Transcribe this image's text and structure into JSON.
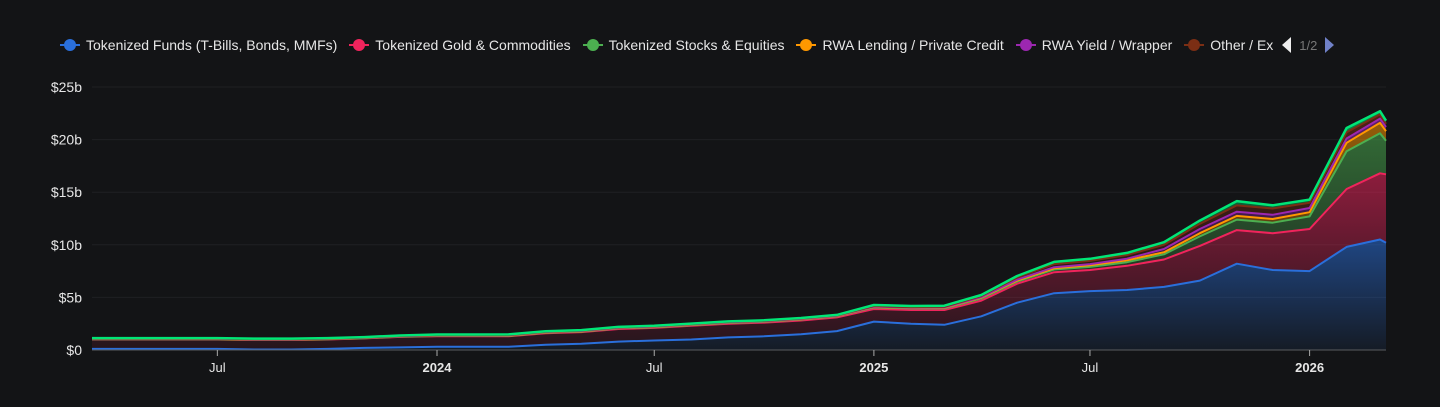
{
  "legend": {
    "page": "1/2"
  },
  "chart_data": {
    "type": "area",
    "stacked": true,
    "title": "",
    "xlabel": "",
    "ylabel": "",
    "ylim": [
      0,
      25
    ],
    "y_ticks": [
      "$0",
      "$5b",
      "$10b",
      "$15b",
      "$20b",
      "$25b"
    ],
    "y_tick_values": [
      0,
      5,
      10,
      15,
      20,
      25
    ],
    "x_ticks": [
      {
        "date": "2023-07-01",
        "label": "Jul",
        "bold": false
      },
      {
        "date": "2024-01-01",
        "label": "2024",
        "bold": true
      },
      {
        "date": "2024-07-01",
        "label": "Jul",
        "bold": false
      },
      {
        "date": "2025-01-01",
        "label": "2025",
        "bold": true
      },
      {
        "date": "2025-07-01",
        "label": "Jul",
        "bold": false
      },
      {
        "date": "2026-01-01",
        "label": "2026",
        "bold": true
      }
    ],
    "xlim": [
      "2023-03-18",
      "2026-03-06"
    ],
    "grid": true,
    "legend_position": "top",
    "x": [
      "2023-03-18",
      "2023-04-01",
      "2023-05-01",
      "2023-06-01",
      "2023-07-01",
      "2023-08-01",
      "2023-09-01",
      "2023-10-01",
      "2023-11-01",
      "2023-12-01",
      "2024-01-01",
      "2024-02-01",
      "2024-03-01",
      "2024-04-01",
      "2024-05-01",
      "2024-06-01",
      "2024-07-01",
      "2024-08-01",
      "2024-09-01",
      "2024-10-01",
      "2024-11-01",
      "2024-12-01",
      "2025-01-01",
      "2025-02-01",
      "2025-03-01",
      "2025-04-01",
      "2025-05-01",
      "2025-06-01",
      "2025-07-01",
      "2025-08-01",
      "2025-09-01",
      "2025-10-01",
      "2025-11-01",
      "2025-12-01",
      "2026-01-01",
      "2026-02-01",
      "2026-03-01",
      "2026-03-06"
    ],
    "series": [
      {
        "name": "Tokenized Funds (T-Bills, Bonds, MMFs)",
        "color": "#2a6fdb",
        "values": [
          0.1,
          0.1,
          0.1,
          0.1,
          0.1,
          0.05,
          0.05,
          0.1,
          0.2,
          0.25,
          0.3,
          0.3,
          0.3,
          0.5,
          0.6,
          0.8,
          0.9,
          1.0,
          1.2,
          1.3,
          1.5,
          1.8,
          2.7,
          2.5,
          2.4,
          3.2,
          4.5,
          5.4,
          5.6,
          5.7,
          6.0,
          6.6,
          8.2,
          7.6,
          7.5,
          9.8,
          10.5,
          10.2
        ]
      },
      {
        "name": "Tokenized Gold & Commodities",
        "color": "#f0245c",
        "values": [
          0.9,
          0.9,
          0.9,
          0.9,
          0.9,
          0.9,
          0.9,
          0.9,
          0.9,
          1.0,
          1.0,
          1.0,
          1.0,
          1.1,
          1.1,
          1.2,
          1.2,
          1.3,
          1.3,
          1.3,
          1.3,
          1.3,
          1.2,
          1.3,
          1.4,
          1.5,
          1.8,
          2.0,
          2.0,
          2.3,
          2.6,
          3.3,
          3.2,
          3.5,
          4.0,
          5.5,
          6.3,
          6.5
        ]
      },
      {
        "name": "Tokenized Stocks & Equities",
        "color": "#4caf50",
        "values": [
          0.02,
          0.02,
          0.02,
          0.02,
          0.02,
          0.02,
          0.02,
          0.02,
          0.02,
          0.02,
          0.03,
          0.03,
          0.04,
          0.05,
          0.05,
          0.06,
          0.06,
          0.07,
          0.08,
          0.08,
          0.1,
          0.1,
          0.15,
          0.15,
          0.15,
          0.2,
          0.2,
          0.25,
          0.3,
          0.35,
          0.5,
          0.9,
          1.0,
          1.0,
          1.2,
          3.6,
          3.8,
          3.2
        ]
      },
      {
        "name": "RWA Lending / Private Credit",
        "color": "#ff9800",
        "values": [
          0.03,
          0.03,
          0.03,
          0.03,
          0.03,
          0.03,
          0.03,
          0.03,
          0.03,
          0.03,
          0.04,
          0.04,
          0.04,
          0.04,
          0.04,
          0.04,
          0.04,
          0.04,
          0.04,
          0.04,
          0.04,
          0.04,
          0.05,
          0.05,
          0.06,
          0.08,
          0.1,
          0.12,
          0.15,
          0.18,
          0.2,
          0.3,
          0.35,
          0.35,
          0.4,
          0.8,
          1.0,
          0.9
        ]
      },
      {
        "name": "RWA Yield / Wrapper",
        "color": "#9c27b0",
        "values": [
          0.01,
          0.01,
          0.01,
          0.01,
          0.01,
          0.01,
          0.01,
          0.01,
          0.01,
          0.01,
          0.02,
          0.02,
          0.02,
          0.02,
          0.02,
          0.02,
          0.02,
          0.02,
          0.02,
          0.02,
          0.02,
          0.02,
          0.03,
          0.03,
          0.04,
          0.05,
          0.08,
          0.1,
          0.12,
          0.15,
          0.3,
          0.4,
          0.4,
          0.4,
          0.4,
          0.4,
          0.4,
          0.4
        ]
      },
      {
        "name": "Other / Exotic",
        "display_name": "Other / Ex",
        "color": "#7b2e14",
        "values": [
          0.02,
          0.02,
          0.02,
          0.02,
          0.02,
          0.02,
          0.02,
          0.02,
          0.02,
          0.02,
          0.03,
          0.03,
          0.03,
          0.03,
          0.03,
          0.03,
          0.03,
          0.03,
          0.03,
          0.03,
          0.03,
          0.03,
          0.05,
          0.05,
          0.06,
          0.1,
          0.2,
          0.3,
          0.3,
          0.35,
          0.4,
          0.5,
          0.6,
          0.6,
          0.5,
          0.6,
          0.4,
          0.3
        ]
      },
      {
        "color": "#00e676",
        "values": [
          0.05,
          0.05,
          0.05,
          0.05,
          0.05,
          0.05,
          0.05,
          0.05,
          0.05,
          0.05,
          0.05,
          0.05,
          0.05,
          0.05,
          0.05,
          0.05,
          0.05,
          0.05,
          0.05,
          0.05,
          0.05,
          0.05,
          0.1,
          0.1,
          0.1,
          0.1,
          0.15,
          0.2,
          0.2,
          0.2,
          0.25,
          0.3,
          0.4,
          0.3,
          0.3,
          0.4,
          0.3,
          0.3
        ]
      }
    ]
  }
}
